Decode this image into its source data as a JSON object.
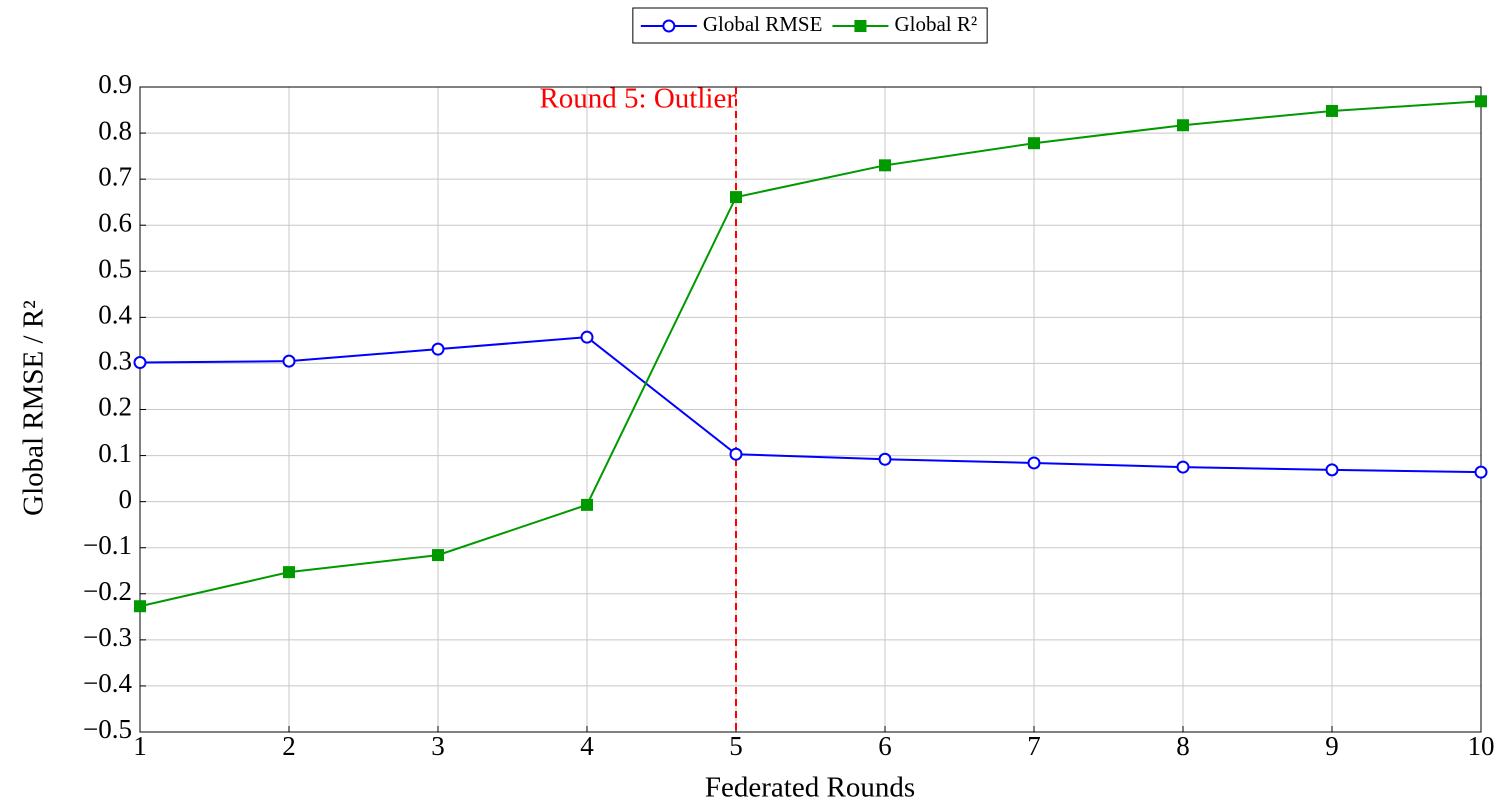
{
  "chart_data": {
    "type": "line",
    "x_label": "Federated Rounds",
    "y_label": "Global RMSE / R²",
    "x": [
      1,
      2,
      3,
      4,
      5,
      6,
      7,
      8,
      9,
      10
    ],
    "series": [
      {
        "name": "Global RMSE",
        "color": "#0000ff",
        "marker": "circle",
        "values": [
          0.302,
          0.305,
          0.331,
          0.357,
          0.103,
          0.092,
          0.084,
          0.075,
          0.069,
          0.064
        ]
      },
      {
        "name": "Global R²",
        "color": "#009900",
        "marker": "square",
        "values": [
          -0.227,
          -0.153,
          -0.116,
          -0.007,
          0.661,
          0.73,
          0.778,
          0.817,
          0.848,
          0.869
        ]
      }
    ],
    "annotation": {
      "text": "Round 5: Outlier",
      "x": 5,
      "color": "#ff0000"
    },
    "xlim": [
      1,
      10
    ],
    "xticks": [
      1,
      2,
      3,
      4,
      5,
      6,
      7,
      8,
      9,
      10
    ],
    "ylim": [
      -0.5,
      0.9
    ],
    "yticks": [
      {
        "value": -0.5,
        "label": "−0.5"
      },
      {
        "value": -0.4,
        "label": "−0.4"
      },
      {
        "value": -0.3,
        "label": "−0.3"
      },
      {
        "value": -0.2,
        "label": "−0.2"
      },
      {
        "value": -0.1,
        "label": "−0.1"
      },
      0,
      0.1,
      0.2,
      0.3,
      0.4,
      0.5,
      0.6,
      0.7,
      0.8,
      0.9
    ],
    "grid": true,
    "legend": "top"
  }
}
